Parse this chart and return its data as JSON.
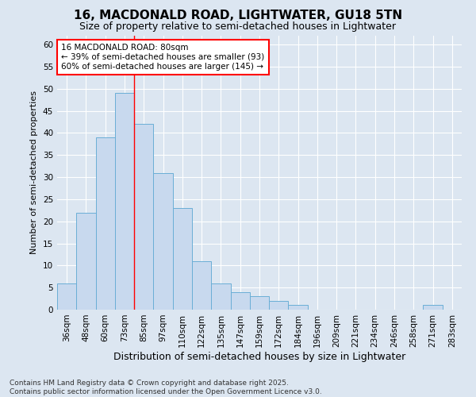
{
  "title": "16, MACDONALD ROAD, LIGHTWATER, GU18 5TN",
  "subtitle": "Size of property relative to semi-detached houses in Lightwater",
  "xlabel": "Distribution of semi-detached houses by size in Lightwater",
  "ylabel": "Number of semi-detached properties",
  "categories": [
    "36sqm",
    "48sqm",
    "60sqm",
    "73sqm",
    "85sqm",
    "97sqm",
    "110sqm",
    "122sqm",
    "135sqm",
    "147sqm",
    "159sqm",
    "172sqm",
    "184sqm",
    "196sqm",
    "209sqm",
    "221sqm",
    "234sqm",
    "246sqm",
    "258sqm",
    "271sqm",
    "283sqm"
  ],
  "values": [
    6,
    22,
    39,
    49,
    42,
    31,
    23,
    11,
    6,
    4,
    3,
    2,
    1,
    0,
    0,
    0,
    0,
    0,
    0,
    1,
    0
  ],
  "bar_color": "#c8d9ee",
  "bar_edge_color": "#6aaed6",
  "background_color": "#dce6f1",
  "plot_bg_color": "#dce6f1",
  "grid_color": "#ffffff",
  "red_line_x": 3.5,
  "annotation_title": "16 MACDONALD ROAD: 80sqm",
  "annotation_line1": "← 39% of semi-detached houses are smaller (93)",
  "annotation_line2": "60% of semi-detached houses are larger (145) →",
  "footer1": "Contains HM Land Registry data © Crown copyright and database right 2025.",
  "footer2": "Contains public sector information licensed under the Open Government Licence v3.0.",
  "ylim": [
    0,
    62
  ],
  "yticks": [
    0,
    5,
    10,
    15,
    20,
    25,
    30,
    35,
    40,
    45,
    50,
    55,
    60
  ],
  "title_fontsize": 11,
  "subtitle_fontsize": 9,
  "xlabel_fontsize": 9,
  "ylabel_fontsize": 8,
  "tick_fontsize": 7.5,
  "annotation_fontsize": 7.5,
  "footer_fontsize": 6.5
}
